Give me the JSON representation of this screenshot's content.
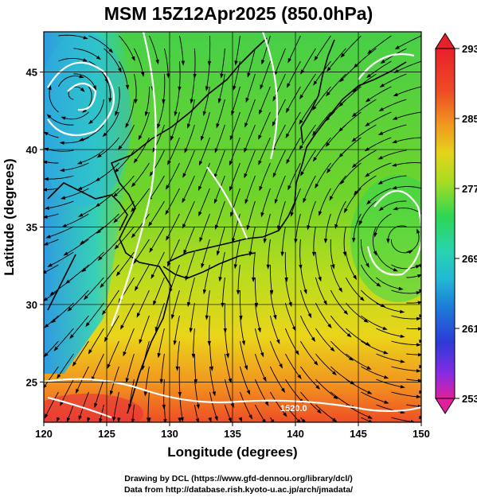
{
  "title": "MSM 15Z12Apr2025 (850.0hPa)",
  "x_axis": {
    "label": "Longitude (degrees)",
    "ticks": [
      "120",
      "125",
      "130",
      "135",
      "140",
      "145",
      "150"
    ],
    "range": [
      120,
      150
    ]
  },
  "y_axis": {
    "label": "Latitude  (degrees)",
    "ticks": [
      "25",
      "30",
      "35",
      "40",
      "45"
    ],
    "range": [
      22.4,
      47.6
    ]
  },
  "colorbar": {
    "ticks": [
      "293",
      "285",
      "277",
      "269",
      "261",
      "253"
    ],
    "range": [
      253,
      293
    ],
    "colors": [
      "#e0209a",
      "#8a2be2",
      "#2d3ad8",
      "#1e7bd8",
      "#22b7d6",
      "#29d3b0",
      "#2ed654",
      "#45d22c",
      "#a8dc22",
      "#e4d41c",
      "#f09a20",
      "#ee4a26",
      "#e8202a"
    ]
  },
  "contour_labels": [
    "1520.0"
  ],
  "credits": [
    "Drawing by DCL (https://www.gfd-dennou.org/library/dcl/)",
    "Data from http://database.rish.kyoto-u.ac.jp/arch/jmadata/"
  ]
}
